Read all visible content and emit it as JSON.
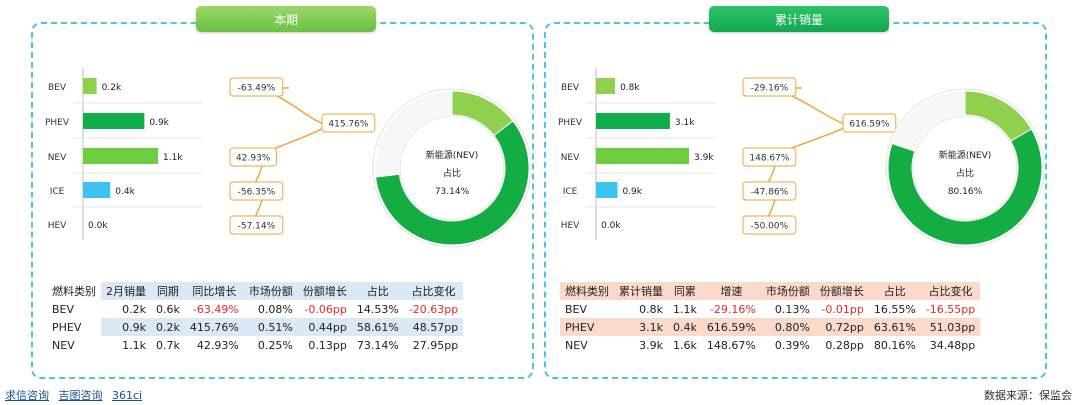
{
  "colors": {
    "bev": "#8fd14f",
    "phev": "#0fae4b",
    "nev": "#6dcf3f",
    "ice": "#3cc3f2",
    "hev": "#cccccc",
    "donut_main": "#14ad43",
    "donut_light": "#8fd14f",
    "donut_rest": "#f7f7f7",
    "label_border": "#f2a637",
    "connector": "#f2a637"
  },
  "footer": {
    "links": [
      "求信咨询",
      "吉图咨询",
      "361ci"
    ],
    "source": "数据来源：保监会"
  },
  "panels": [
    {
      "title": "本期",
      "donut_center": [
        "新能源(NEV)",
        "占比",
        "73.14%"
      ],
      "table": {
        "headers": [
          "燃料类别",
          "2月销量",
          "同期",
          "同比增长",
          "市场份额",
          "份额增长",
          "占比",
          "占比变化"
        ],
        "rows": [
          [
            "BEV",
            "0.2k",
            "0.6k",
            "-63.49%",
            "0.08%",
            "-0.06pp",
            "14.53%",
            "-20.63pp"
          ],
          [
            "PHEV",
            "0.9k",
            "0.2k",
            "415.76%",
            "0.51%",
            "0.44pp",
            "58.61%",
            "48.57pp"
          ],
          [
            "NEV",
            "1.1k",
            "0.7k",
            "42.93%",
            "0.25%",
            "0.13pp",
            "73.14%",
            "27.95pp"
          ]
        ]
      }
    },
    {
      "title": "累计销量",
      "donut_center": [
        "新能源(NEV)",
        "占比",
        "80.16%"
      ],
      "table": {
        "headers": [
          "燃料类别",
          "累计销量",
          "同累",
          "增速",
          "市场份额",
          "份额增长",
          "占比",
          "占比变化"
        ],
        "rows": [
          [
            "BEV",
            "0.8k",
            "1.1k",
            "-29.16%",
            "0.13%",
            "-0.01pp",
            "16.55%",
            "-16.55pp"
          ],
          [
            "PHEV",
            "3.1k",
            "0.4k",
            "616.59%",
            "0.80%",
            "0.72pp",
            "63.61%",
            "51.03pp"
          ],
          [
            "NEV",
            "3.9k",
            "1.6k",
            "148.67%",
            "0.39%",
            "0.28pp",
            "80.16%",
            "34.48pp"
          ]
        ]
      }
    }
  ],
  "chart_data": [
    {
      "type": "bar",
      "categories": [
        "BEV",
        "PHEV",
        "NEV",
        "ICE",
        "HEV"
      ],
      "values": [
        0.2,
        0.9,
        1.1,
        0.4,
        0.0
      ],
      "value_labels": [
        "0.2k",
        "0.9k",
        "1.1k",
        "0.4k",
        "0.0k"
      ],
      "growth_labels": [
        "-63.49%",
        "415.76%",
        "42.93%",
        "-56.35%",
        "-57.14%"
      ],
      "growth_values": [
        -63.49,
        415.76,
        42.93,
        -56.35,
        -57.14
      ],
      "unit": "k",
      "donut": {
        "type": "pie",
        "slices": [
          {
            "label": "BEV",
            "value": 14.53
          },
          {
            "label": "PHEV",
            "value": 58.61
          },
          {
            "label": "other",
            "value": 26.86
          }
        ]
      }
    },
    {
      "type": "bar",
      "categories": [
        "BEV",
        "PHEV",
        "NEV",
        "ICE",
        "HEV"
      ],
      "values": [
        0.8,
        3.1,
        3.9,
        0.9,
        0.0
      ],
      "value_labels": [
        "0.8k",
        "3.1k",
        "3.9k",
        "0.9k",
        "0.0k"
      ],
      "growth_labels": [
        "-29.16%",
        "616.59%",
        "148.67%",
        "-47.86%",
        "-50.00%"
      ],
      "growth_values": [
        -29.16,
        616.59,
        148.67,
        -47.86,
        -50.0
      ],
      "unit": "k",
      "donut": {
        "type": "pie",
        "slices": [
          {
            "label": "BEV",
            "value": 16.55
          },
          {
            "label": "PHEV",
            "value": 63.61
          },
          {
            "label": "other",
            "value": 19.84
          }
        ]
      }
    }
  ]
}
